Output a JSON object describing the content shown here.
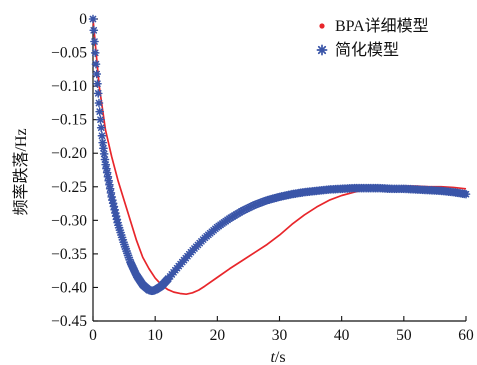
{
  "chart_data": {
    "type": "line",
    "title": "",
    "xlabel_italic": "t",
    "xlabel_unit": "/s",
    "ylabel": "频率跌落/Hz",
    "xlim": [
      0,
      60
    ],
    "ylim": [
      -0.45,
      0
    ],
    "x_ticks": [
      0,
      10,
      20,
      30,
      40,
      50,
      60
    ],
    "y_ticks": [
      0,
      -0.05,
      -0.1,
      -0.15,
      -0.2,
      -0.25,
      -0.3,
      -0.35,
      -0.4,
      -0.45
    ],
    "y_tick_labels": [
      "0",
      "−0.05",
      "−0.10",
      "−0.15",
      "−0.20",
      "−0.25",
      "−0.30",
      "−0.35",
      "−0.40",
      "−0.45"
    ],
    "grid": false,
    "legend_position": "top-right",
    "series": [
      {
        "name": "BPA详细模型",
        "color": "#e8262b",
        "marker": "line",
        "points": [
          [
            0,
            0
          ],
          [
            0.5,
            -0.05
          ],
          [
            1,
            -0.1
          ],
          [
            2,
            -0.165
          ],
          [
            3,
            -0.205
          ],
          [
            4,
            -0.24
          ],
          [
            5,
            -0.27
          ],
          [
            6,
            -0.3
          ],
          [
            7,
            -0.33
          ],
          [
            8,
            -0.355
          ],
          [
            9,
            -0.372
          ],
          [
            10,
            -0.386
          ],
          [
            11,
            -0.396
          ],
          [
            12,
            -0.403
          ],
          [
            13,
            -0.407
          ],
          [
            14,
            -0.409
          ],
          [
            15,
            -0.41
          ],
          [
            16,
            -0.408
          ],
          [
            17,
            -0.404
          ],
          [
            18,
            -0.398
          ],
          [
            20,
            -0.385
          ],
          [
            22,
            -0.372
          ],
          [
            24,
            -0.36
          ],
          [
            26,
            -0.348
          ],
          [
            28,
            -0.336
          ],
          [
            30,
            -0.322
          ],
          [
            32,
            -0.306
          ],
          [
            34,
            -0.292
          ],
          [
            36,
            -0.28
          ],
          [
            38,
            -0.27
          ],
          [
            40,
            -0.263
          ],
          [
            42,
            -0.258
          ],
          [
            44,
            -0.254
          ],
          [
            46,
            -0.251
          ],
          [
            48,
            -0.25
          ],
          [
            50,
            -0.249
          ],
          [
            52,
            -0.249
          ],
          [
            54,
            -0.25
          ],
          [
            56,
            -0.25
          ],
          [
            58,
            -0.251
          ],
          [
            60,
            -0.253
          ]
        ]
      },
      {
        "name": "简化模型",
        "color": "#3a55a8",
        "marker": "star",
        "points": [
          [
            0,
            0
          ],
          [
            0.5,
            -0.07
          ],
          [
            1,
            -0.13
          ],
          [
            1.5,
            -0.18
          ],
          [
            2,
            -0.215
          ],
          [
            3,
            -0.265
          ],
          [
            4,
            -0.305
          ],
          [
            5,
            -0.335
          ],
          [
            6,
            -0.362
          ],
          [
            7,
            -0.382
          ],
          [
            8,
            -0.396
          ],
          [
            9,
            -0.404
          ],
          [
            9.5,
            -0.405
          ],
          [
            10,
            -0.404
          ],
          [
            11,
            -0.398
          ],
          [
            12,
            -0.388
          ],
          [
            13,
            -0.377
          ],
          [
            14,
            -0.366
          ],
          [
            16,
            -0.345
          ],
          [
            18,
            -0.326
          ],
          [
            20,
            -0.31
          ],
          [
            22,
            -0.297
          ],
          [
            24,
            -0.286
          ],
          [
            26,
            -0.277
          ],
          [
            28,
            -0.27
          ],
          [
            30,
            -0.265
          ],
          [
            32,
            -0.261
          ],
          [
            34,
            -0.258
          ],
          [
            36,
            -0.256
          ],
          [
            38,
            -0.254
          ],
          [
            40,
            -0.253
          ],
          [
            42,
            -0.252
          ],
          [
            44,
            -0.252
          ],
          [
            46,
            -0.252
          ],
          [
            48,
            -0.253
          ],
          [
            50,
            -0.253
          ],
          [
            52,
            -0.254
          ],
          [
            54,
            -0.255
          ],
          [
            56,
            -0.256
          ],
          [
            58,
            -0.258
          ],
          [
            60,
            -0.261
          ]
        ]
      }
    ]
  }
}
